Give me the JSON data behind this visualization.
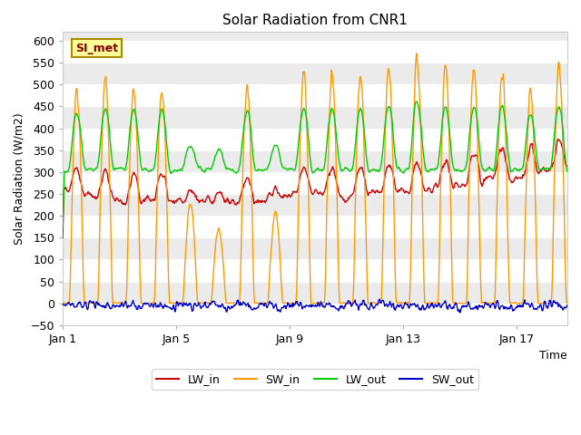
{
  "title": "Solar Radiation from CNR1",
  "xlabel": "Time",
  "ylabel": "Solar Radiation (W/m2)",
  "ylim": [
    -50,
    620
  ],
  "xlim": [
    1,
    18.8
  ],
  "yticks": [
    -50,
    0,
    50,
    100,
    150,
    200,
    250,
    300,
    350,
    400,
    450,
    500,
    550,
    600
  ],
  "xtick_labels": [
    "Jan 1",
    "Jan 5",
    "Jan 9",
    "Jan 13",
    "Jan 17"
  ],
  "xtick_positions": [
    1,
    5,
    9,
    13,
    17
  ],
  "legend_labels": [
    "LW_in",
    "SW_in",
    "LW_out",
    "SW_out"
  ],
  "line_colors": [
    "#cc0000",
    "#ff9900",
    "#00cc00",
    "#0000cc"
  ],
  "si_met_label": "SI_met",
  "bg_color": "#ffffff",
  "plot_bg_color": "#ebebeb",
  "stripe_color": "#ffffff",
  "grid_color": "#ffffff",
  "num_days": 18,
  "pts_per_day": 48,
  "seed": 7
}
